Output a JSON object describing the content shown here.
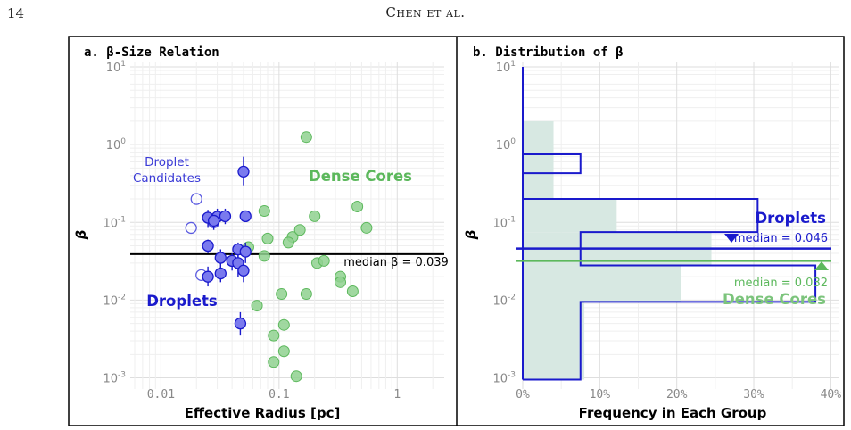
{
  "page": {
    "number": "14",
    "running_head": "Chen et al."
  },
  "colors": {
    "droplets": "#1a1acc",
    "dense_cores": "#5cb85c",
    "dense_fill": "#8fd18f",
    "hist_dense_fill": "#d7e8e2",
    "median_line": "#000000"
  },
  "chart_data": [
    {
      "type": "scatter",
      "title": "a. β-Size Relation",
      "xlabel": "Effective Radius [pc]",
      "ylabel": "β",
      "xscale": "log",
      "yscale": "log",
      "xlim": [
        0.0055,
        2.5
      ],
      "ylim": [
        0.0008,
        10
      ],
      "xticks": [
        "0.01",
        "0.1",
        "1"
      ],
      "yticks": [
        "10¹",
        "10⁰",
        "10⁻¹",
        "10⁻²",
        "10⁻³"
      ],
      "grid": true,
      "annotations": {
        "droplet_candidates_line1": "Droplet",
        "droplet_candidates_line2": "Candidates",
        "dense_cores": "Dense Cores",
        "droplets": "Droplets",
        "median_label": "median β = 0.039"
      },
      "median_beta": 0.039,
      "series": [
        {
          "name": "Droplets",
          "points": [
            [
              0.05,
              0.45,
              0.3,
              0.7
            ],
            [
              0.025,
              0.115,
              0.085,
              0.145
            ],
            [
              0.03,
              0.118,
              0.09,
              0.15
            ],
            [
              0.035,
              0.12,
              0.095,
              0.15
            ],
            [
              0.052,
              0.12,
              0,
              0
            ],
            [
              0.028,
              0.105,
              0.08,
              0.13
            ],
            [
              0.025,
              0.05,
              0.04,
              0.06
            ],
            [
              0.045,
              0.045,
              0.035,
              0.055
            ],
            [
              0.052,
              0.042,
              0.03,
              0.055
            ],
            [
              0.032,
              0.035,
              0.026,
              0.045
            ],
            [
              0.04,
              0.032,
              0.024,
              0.04
            ],
            [
              0.045,
              0.03,
              0.02,
              0.04
            ],
            [
              0.05,
              0.024,
              0.017,
              0.032
            ],
            [
              0.032,
              0.022,
              0.017,
              0.027
            ],
            [
              0.025,
              0.02,
              0.015,
              0.027
            ],
            [
              0.047,
              0.005,
              0.0035,
              0.007
            ]
          ]
        },
        {
          "name": "Droplet Candidates",
          "points": [
            [
              0.02,
              0.2
            ],
            [
              0.018,
              0.085
            ],
            [
              0.028,
              0.1
            ],
            [
              0.022,
              0.021
            ]
          ]
        },
        {
          "name": "Dense Cores",
          "points": [
            [
              0.17,
              1.25
            ],
            [
              0.075,
              0.14
            ],
            [
              0.2,
              0.12
            ],
            [
              0.46,
              0.16
            ],
            [
              0.13,
              0.065
            ],
            [
              0.15,
              0.08
            ],
            [
              0.12,
              0.055
            ],
            [
              0.08,
              0.062
            ],
            [
              0.055,
              0.048
            ],
            [
              0.075,
              0.037
            ],
            [
              0.55,
              0.085
            ],
            [
              0.21,
              0.03
            ],
            [
              0.24,
              0.032
            ],
            [
              0.33,
              0.02
            ],
            [
              0.33,
              0.017
            ],
            [
              0.42,
              0.013
            ],
            [
              0.17,
              0.012
            ],
            [
              0.105,
              0.012
            ],
            [
              0.065,
              0.0085
            ],
            [
              0.11,
              0.0048
            ],
            [
              0.09,
              0.0035
            ],
            [
              0.11,
              0.0022
            ],
            [
              0.09,
              0.0016
            ],
            [
              0.14,
              0.00105
            ]
          ]
        }
      ]
    },
    {
      "type": "histogram",
      "title": "b. Distribution of β",
      "xlabel": "Frequency in Each Group",
      "ylabel": "β",
      "yscale": "log",
      "xlim": [
        0,
        41
      ],
      "ylim": [
        0.0008,
        10
      ],
      "xticks": [
        "0%",
        "10%",
        "20%",
        "30%",
        "40%"
      ],
      "yticks": [
        "10¹",
        "10⁰",
        "10⁻¹",
        "10⁻²",
        "10⁻³"
      ],
      "grid": true,
      "series": [
        {
          "name": "Droplets",
          "bins": [
            [
              10.0,
              0.75,
              0.0
            ],
            [
              0.75,
              0.43,
              7.5
            ],
            [
              0.43,
              0.2,
              0.0
            ],
            [
              0.2,
              0.075,
              30.5
            ],
            [
              0.075,
              0.028,
              7.5
            ],
            [
              0.028,
              0.0095,
              38.0
            ],
            [
              0.0095,
              0.00095,
              7.5
            ]
          ],
          "median": 0.046,
          "median_label": "median = 0.046",
          "label": "Droplets"
        },
        {
          "name": "Dense Cores",
          "bins": [
            [
              2.0,
              0.2,
              4.0
            ],
            [
              0.2,
              0.075,
              12.2
            ],
            [
              0.075,
              0.028,
              24.5
            ],
            [
              0.028,
              0.0095,
              20.5
            ],
            [
              0.0095,
              0.00095,
              8.0
            ]
          ],
          "median": 0.032,
          "median_label": "median = 0.032",
          "label": "Dense Cores"
        }
      ]
    }
  ]
}
